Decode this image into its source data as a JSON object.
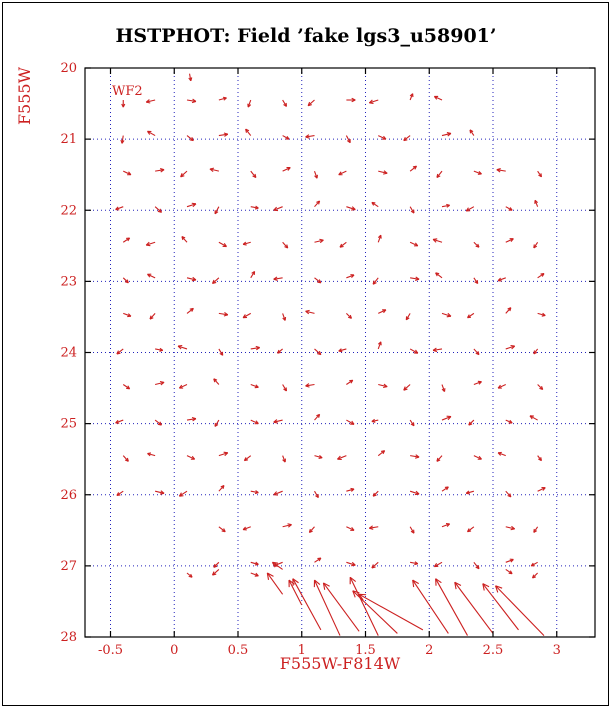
{
  "title": "HSTPHOT: Field ’fake lgs3_u58901’",
  "annotation": "WF2",
  "colors": {
    "title": "#000000",
    "axis_box": "#000000",
    "grid": "#2222bb",
    "labels": "#cc2020",
    "vectors": "#cc2020",
    "background": "#ffffff"
  },
  "chart_data": {
    "type": "quiver",
    "title": "HSTPHOT: Field ’fake lgs3_u58901’",
    "xlabel": "F555W-F814W",
    "ylabel": "F555W",
    "annotation": "WF2",
    "xlim": [
      -0.7,
      3.3
    ],
    "y_top": 20,
    "y_bottom": 28,
    "y_axis_note": "magnitude axis, bright (20) at top, faint (28) at bottom",
    "grid": true,
    "grid_style": "dotted",
    "x_ticks": [
      {
        "v": -0.5,
        "label": "-0.5"
      },
      {
        "v": 0,
        "label": "0"
      },
      {
        "v": 0.5,
        "label": "0.5"
      },
      {
        "v": 1,
        "label": "1"
      },
      {
        "v": 1.5,
        "label": "1.5"
      },
      {
        "v": 2,
        "label": "2"
      },
      {
        "v": 2.5,
        "label": "2.5"
      },
      {
        "v": 3,
        "label": "3"
      }
    ],
    "y_ticks": [
      {
        "v": 20,
        "label": "20"
      },
      {
        "v": 21,
        "label": "21"
      },
      {
        "v": 22,
        "label": "22"
      },
      {
        "v": 23,
        "label": "23"
      },
      {
        "v": 24,
        "label": "24"
      },
      {
        "v": 25,
        "label": "25"
      },
      {
        "v": 26,
        "label": "26"
      },
      {
        "v": 27,
        "label": "27"
      },
      {
        "v": 28,
        "label": "28"
      }
    ],
    "vectors_format": [
      "x_color",
      "y_mag",
      "dx_color",
      "dy_mag"
    ],
    "vectors": [
      [
        0.12,
        20.08,
        0.01,
        0.1
      ],
      [
        -0.4,
        20.45,
        0.0,
        0.1
      ],
      [
        -0.15,
        20.45,
        -0.07,
        0.03
      ],
      [
        0.1,
        20.45,
        0.07,
        0.02
      ],
      [
        0.35,
        20.45,
        0.06,
        -0.03
      ],
      [
        0.6,
        20.45,
        -0.02,
        0.1
      ],
      [
        0.85,
        20.45,
        0.03,
        0.09
      ],
      [
        1.1,
        20.45,
        -0.05,
        0.08
      ],
      [
        1.35,
        20.45,
        0.07,
        0.0
      ],
      [
        1.6,
        20.45,
        -0.07,
        0.04
      ],
      [
        1.85,
        20.45,
        0.02,
        -0.09
      ],
      [
        2.1,
        20.45,
        -0.06,
        -0.05
      ],
      [
        -0.4,
        20.95,
        -0.01,
        0.11
      ],
      [
        -0.15,
        20.95,
        -0.06,
        -0.06
      ],
      [
        0.1,
        20.95,
        0.05,
        0.07
      ],
      [
        0.35,
        20.95,
        0.07,
        -0.02
      ],
      [
        0.6,
        20.95,
        -0.04,
        -0.09
      ],
      [
        0.85,
        20.95,
        0.05,
        0.05
      ],
      [
        1.1,
        20.95,
        -0.07,
        0.02
      ],
      [
        1.35,
        20.95,
        0.03,
        0.1
      ],
      [
        1.6,
        20.95,
        0.06,
        0.05
      ],
      [
        1.85,
        20.95,
        -0.05,
        0.07
      ],
      [
        2.1,
        20.95,
        0.07,
        -0.03
      ],
      [
        2.35,
        20.95,
        -0.03,
        -0.08
      ],
      [
        -0.4,
        21.45,
        0.06,
        0.05
      ],
      [
        -0.15,
        21.45,
        0.07,
        -0.02
      ],
      [
        0.1,
        21.45,
        -0.05,
        0.08
      ],
      [
        0.35,
        21.45,
        -0.07,
        -0.03
      ],
      [
        0.6,
        21.45,
        0.04,
        0.09
      ],
      [
        0.85,
        21.45,
        0.06,
        -0.05
      ],
      [
        1.1,
        21.45,
        0.02,
        0.1
      ],
      [
        1.35,
        21.45,
        -0.06,
        0.05
      ],
      [
        1.6,
        21.45,
        0.07,
        0.03
      ],
      [
        1.85,
        21.45,
        0.05,
        -0.07
      ],
      [
        2.1,
        21.45,
        -0.04,
        0.09
      ],
      [
        2.35,
        21.45,
        0.06,
        0.04
      ],
      [
        2.6,
        21.45,
        -0.07,
        -0.02
      ],
      [
        2.85,
        21.45,
        0.03,
        0.08
      ],
      [
        -0.4,
        21.95,
        -0.06,
        0.04
      ],
      [
        -0.15,
        21.95,
        0.05,
        0.08
      ],
      [
        0.1,
        21.95,
        0.07,
        -0.04
      ],
      [
        0.35,
        21.95,
        -0.03,
        0.1
      ],
      [
        0.6,
        21.95,
        0.06,
        0.02
      ],
      [
        0.85,
        21.95,
        -0.07,
        0.05
      ],
      [
        1.1,
        21.95,
        0.04,
        -0.08
      ],
      [
        1.35,
        21.95,
        0.07,
        0.04
      ],
      [
        1.6,
        21.95,
        -0.05,
        -0.06
      ],
      [
        1.85,
        21.95,
        0.03,
        0.09
      ],
      [
        2.1,
        21.95,
        0.06,
        -0.02
      ],
      [
        2.35,
        21.95,
        -0.06,
        0.06
      ],
      [
        2.6,
        21.95,
        0.05,
        0.05
      ],
      [
        2.85,
        21.95,
        -0.02,
        -0.09
      ],
      [
        -0.4,
        22.45,
        0.05,
        -0.06
      ],
      [
        -0.15,
        22.45,
        -0.07,
        0.04
      ],
      [
        0.1,
        22.45,
        -0.04,
        -0.08
      ],
      [
        0.35,
        22.45,
        0.06,
        0.06
      ],
      [
        0.6,
        22.45,
        -0.06,
        0.03
      ],
      [
        0.85,
        22.45,
        0.04,
        0.08
      ],
      [
        1.1,
        22.45,
        0.07,
        -0.03
      ],
      [
        1.35,
        22.45,
        -0.05,
        0.07
      ],
      [
        1.6,
        22.45,
        0.02,
        -0.1
      ],
      [
        1.85,
        22.45,
        0.06,
        0.05
      ],
      [
        2.1,
        22.45,
        -0.07,
        -0.04
      ],
      [
        2.35,
        22.45,
        0.04,
        0.07
      ],
      [
        2.6,
        22.45,
        0.06,
        -0.05
      ],
      [
        2.85,
        22.45,
        -0.03,
        0.08
      ],
      [
        -0.4,
        22.95,
        0.04,
        0.07
      ],
      [
        -0.15,
        22.95,
        -0.06,
        -0.05
      ],
      [
        0.1,
        22.95,
        0.07,
        0.03
      ],
      [
        0.35,
        22.95,
        -0.05,
        0.08
      ],
      [
        0.6,
        22.95,
        0.03,
        -0.09
      ],
      [
        0.85,
        22.95,
        -0.07,
        0.02
      ],
      [
        1.1,
        22.95,
        0.05,
        0.07
      ],
      [
        1.35,
        22.95,
        0.06,
        -0.04
      ],
      [
        1.6,
        22.95,
        -0.04,
        0.09
      ],
      [
        1.85,
        22.95,
        0.07,
        0.02
      ],
      [
        2.1,
        22.95,
        -0.05,
        -0.07
      ],
      [
        2.35,
        22.95,
        0.03,
        0.08
      ],
      [
        2.6,
        22.95,
        -0.06,
        0.04
      ],
      [
        2.85,
        22.95,
        0.05,
        -0.06
      ],
      [
        -0.4,
        23.45,
        0.06,
        0.04
      ],
      [
        -0.15,
        23.45,
        -0.04,
        0.08
      ],
      [
        0.1,
        23.45,
        0.05,
        -0.07
      ],
      [
        0.35,
        23.45,
        0.07,
        0.02
      ],
      [
        0.6,
        23.45,
        -0.06,
        0.06
      ],
      [
        0.85,
        23.45,
        0.02,
        0.1
      ],
      [
        1.1,
        23.45,
        -0.07,
        -0.03
      ],
      [
        1.35,
        23.45,
        0.04,
        0.07
      ],
      [
        1.6,
        23.45,
        0.06,
        -0.05
      ],
      [
        1.85,
        23.45,
        -0.03,
        0.09
      ],
      [
        2.1,
        23.45,
        0.07,
        0.04
      ],
      [
        2.35,
        23.45,
        -0.05,
        0.06
      ],
      [
        2.6,
        23.45,
        0.04,
        -0.08
      ],
      [
        2.85,
        23.45,
        0.06,
        0.03
      ],
      [
        -0.4,
        23.95,
        -0.05,
        0.07
      ],
      [
        -0.15,
        23.95,
        0.06,
        0.02
      ],
      [
        0.1,
        23.95,
        -0.07,
        -0.04
      ],
      [
        0.35,
        23.95,
        0.03,
        0.09
      ],
      [
        0.6,
        23.95,
        0.07,
        -0.02
      ],
      [
        0.85,
        23.95,
        -0.04,
        0.06
      ],
      [
        1.1,
        23.95,
        0.05,
        0.08
      ],
      [
        1.35,
        23.95,
        -0.06,
        0.03
      ],
      [
        1.6,
        23.95,
        0.02,
        -0.1
      ],
      [
        1.85,
        23.95,
        0.06,
        0.06
      ],
      [
        2.1,
        23.95,
        -0.07,
        0.02
      ],
      [
        2.35,
        23.95,
        0.04,
        0.08
      ],
      [
        2.6,
        23.95,
        0.07,
        -0.04
      ],
      [
        2.85,
        23.95,
        -0.03,
        0.07
      ],
      [
        -0.4,
        24.45,
        0.05,
        0.06
      ],
      [
        -0.15,
        24.45,
        0.07,
        -0.03
      ],
      [
        0.1,
        24.45,
        -0.06,
        0.05
      ],
      [
        0.35,
        24.45,
        -0.04,
        -0.08
      ],
      [
        0.6,
        24.45,
        0.06,
        0.04
      ],
      [
        0.85,
        24.45,
        0.03,
        0.09
      ],
      [
        1.1,
        24.45,
        -0.07,
        0.02
      ],
      [
        1.35,
        24.45,
        0.05,
        -0.06
      ],
      [
        1.6,
        24.45,
        0.07,
        0.03
      ],
      [
        1.85,
        24.45,
        -0.05,
        0.08
      ],
      [
        2.1,
        24.45,
        0.02,
        0.1
      ],
      [
        2.35,
        24.45,
        0.06,
        -0.04
      ],
      [
        2.6,
        24.45,
        -0.06,
        0.05
      ],
      [
        2.85,
        24.45,
        0.04,
        0.07
      ],
      [
        -0.4,
        24.95,
        -0.06,
        0.04
      ],
      [
        -0.15,
        24.95,
        0.05,
        0.07
      ],
      [
        0.1,
        24.95,
        0.07,
        -0.02
      ],
      [
        0.35,
        24.95,
        -0.03,
        0.09
      ],
      [
        0.6,
        24.95,
        0.06,
        0.05
      ],
      [
        0.85,
        24.95,
        -0.07,
        0.03
      ],
      [
        1.1,
        24.95,
        0.04,
        -0.08
      ],
      [
        1.35,
        24.95,
        0.06,
        0.06
      ],
      [
        1.6,
        24.95,
        -0.05,
        0.02
      ],
      [
        1.85,
        24.95,
        0.03,
        0.08
      ],
      [
        2.1,
        24.95,
        0.07,
        -0.05
      ],
      [
        2.35,
        24.95,
        -0.04,
        0.07
      ],
      [
        2.6,
        24.95,
        0.05,
        0.04
      ],
      [
        2.85,
        24.95,
        -0.06,
        -0.06
      ],
      [
        -0.4,
        25.45,
        0.04,
        0.08
      ],
      [
        -0.15,
        25.45,
        -0.06,
        -0.03
      ],
      [
        0.1,
        25.45,
        0.06,
        0.05
      ],
      [
        0.35,
        25.45,
        0.07,
        -0.04
      ],
      [
        0.6,
        25.45,
        -0.05,
        0.07
      ],
      [
        0.85,
        25.45,
        0.02,
        0.09
      ],
      [
        1.1,
        25.45,
        0.06,
        0.03
      ],
      [
        1.35,
        25.45,
        -0.07,
        0.05
      ],
      [
        1.6,
        25.45,
        0.05,
        -0.07
      ],
      [
        1.85,
        25.45,
        0.07,
        0.02
      ],
      [
        2.1,
        25.45,
        -0.04,
        0.08
      ],
      [
        2.35,
        25.45,
        0.06,
        0.05
      ],
      [
        2.6,
        25.45,
        -0.06,
        -0.04
      ],
      [
        2.85,
        25.45,
        0.03,
        0.07
      ],
      [
        -0.4,
        25.95,
        -0.05,
        0.06
      ],
      [
        -0.15,
        25.95,
        0.07,
        0.03
      ],
      [
        0.1,
        25.95,
        -0.06,
        0.07
      ],
      [
        0.35,
        25.95,
        0.04,
        -0.08
      ],
      [
        0.6,
        25.95,
        0.06,
        0.02
      ],
      [
        0.85,
        25.95,
        -0.07,
        0.05
      ],
      [
        1.1,
        25.95,
        0.03,
        0.09
      ],
      [
        1.35,
        25.95,
        0.06,
        -0.03
      ],
      [
        1.6,
        25.95,
        -0.04,
        0.07
      ],
      [
        1.85,
        25.95,
        0.07,
        0.04
      ],
      [
        2.1,
        25.95,
        0.05,
        -0.06
      ],
      [
        2.35,
        25.95,
        -0.06,
        0.03
      ],
      [
        2.6,
        25.95,
        0.04,
        0.08
      ],
      [
        2.85,
        25.95,
        0.06,
        -0.05
      ],
      [
        0.35,
        26.45,
        0.05,
        0.07
      ],
      [
        0.6,
        26.45,
        -0.06,
        0.04
      ],
      [
        0.85,
        26.45,
        0.07,
        -0.03
      ],
      [
        1.1,
        26.45,
        -0.04,
        0.08
      ],
      [
        1.35,
        26.45,
        0.06,
        0.05
      ],
      [
        1.6,
        26.45,
        -0.07,
        0.02
      ],
      [
        1.85,
        26.45,
        0.03,
        0.09
      ],
      [
        2.1,
        26.45,
        0.06,
        -0.04
      ],
      [
        2.35,
        26.45,
        -0.05,
        0.07
      ],
      [
        2.6,
        26.45,
        0.07,
        0.03
      ],
      [
        2.85,
        26.45,
        -0.03,
        0.08
      ],
      [
        0.35,
        26.95,
        -0.04,
        0.07
      ],
      [
        0.6,
        26.95,
        0.06,
        0.03
      ],
      [
        0.85,
        26.95,
        -0.07,
        0.05
      ],
      [
        1.1,
        26.95,
        0.05,
        -0.06
      ],
      [
        1.35,
        26.95,
        0.07,
        0.04
      ],
      [
        1.6,
        26.95,
        -0.05,
        0.08
      ],
      [
        1.85,
        26.95,
        0.06,
        0.02
      ],
      [
        2.1,
        26.95,
        -0.06,
        0.06
      ],
      [
        2.35,
        26.95,
        0.04,
        0.09
      ],
      [
        2.6,
        26.95,
        0.06,
        -0.04
      ],
      [
        2.85,
        26.95,
        -0.05,
        0.05
      ],
      [
        0.1,
        27.1,
        0.04,
        0.06
      ],
      [
        0.35,
        27.05,
        -0.05,
        0.08
      ],
      [
        0.6,
        27.1,
        0.06,
        0.04
      ],
      [
        0.85,
        27.05,
        -0.08,
        -0.1
      ],
      [
        2.6,
        27.05,
        0.05,
        0.06
      ],
      [
        2.85,
        27.1,
        -0.04,
        0.07
      ],
      [
        0.85,
        27.4,
        -0.12,
        -0.3
      ],
      [
        1.0,
        27.55,
        -0.1,
        -0.35
      ],
      [
        1.15,
        27.9,
        -0.22,
        -0.72
      ],
      [
        1.3,
        27.98,
        -0.2,
        -0.78
      ],
      [
        1.45,
        27.92,
        -0.28,
        -0.68
      ],
      [
        1.6,
        27.98,
        -0.22,
        -0.82
      ],
      [
        1.75,
        27.95,
        -0.35,
        -0.6
      ],
      [
        1.95,
        27.9,
        -0.5,
        -0.5
      ],
      [
        2.15,
        27.95,
        -0.28,
        -0.75
      ],
      [
        2.3,
        27.98,
        -0.25,
        -0.8
      ],
      [
        2.5,
        27.95,
        -0.3,
        -0.72
      ],
      [
        2.7,
        27.9,
        -0.28,
        -0.65
      ],
      [
        2.9,
        27.98,
        -0.38,
        -0.7
      ]
    ]
  }
}
